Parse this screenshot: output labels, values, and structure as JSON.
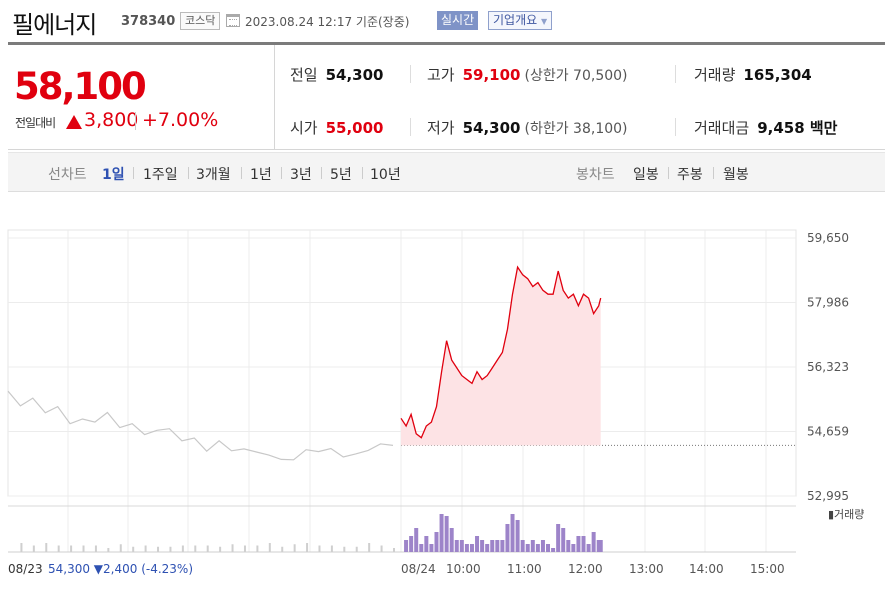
{
  "header": {
    "stock_name": "필에너지",
    "stock_code": "378340",
    "market": "코스닥",
    "datetime": "2023.08.24 12:17 기준(장중)",
    "live_label": "실시간",
    "company_info_label": "기업개요"
  },
  "summary": {
    "price": "58,100",
    "change_label": "전일대비",
    "change_value": "3,800",
    "change_rate": "+7.00%",
    "prev_close_label": "전일",
    "prev_close": "54,300",
    "high_label": "고가",
    "high": "59,100",
    "upper_limit": "(상한가 70,500)",
    "volume_label": "거래량",
    "volume": "165,304",
    "open_label": "시가",
    "open": "55,000",
    "low_label": "저가",
    "low": "54,300",
    "lower_limit": "(하한가 38,100)",
    "amount_label": "거래대금",
    "amount": "9,458 백만"
  },
  "period_bar": {
    "line_chart_label": "선차트",
    "periods": [
      "1일",
      "1주일",
      "3개월",
      "1년",
      "3년",
      "5년",
      "10년"
    ],
    "selected": "1일",
    "candle_chart_label": "봉차트",
    "candles": [
      "일봉",
      "주봉",
      "월봉"
    ]
  },
  "colors": {
    "up": "#e0000f",
    "down": "#2e51b2",
    "area": "#fde3e5",
    "prev_line": "#c8c8c8",
    "volume_today": "#9d84c9",
    "volume_prev": "#cfcfcf"
  },
  "chart_data": {
    "type": "line",
    "title": "",
    "ylim": [
      52995,
      59650
    ],
    "y_ticks": [
      "59,650",
      "57,986",
      "56,323",
      "54,659",
      "52,995"
    ],
    "x_ticks": [
      "08/24",
      "10:00",
      "11:00",
      "12:00",
      "13:00",
      "14:00",
      "15:00"
    ],
    "reference_price": 54300,
    "volume_label": "거래량",
    "prev_day": {
      "label": "08/23",
      "close_text": "54,300",
      "change_text": "2,400",
      "rate_text": "(-4.23%)",
      "values": [
        55700,
        55500,
        55400,
        55200,
        55100,
        55000,
        54900,
        55000,
        55000,
        54850,
        54800,
        54700,
        54650,
        54600,
        54500,
        54400,
        54300,
        54350,
        54200,
        54100,
        54200,
        54000,
        54050,
        53900,
        54100,
        54200,
        54100,
        54050,
        54000,
        54200,
        54300,
        54300
      ]
    },
    "today": {
      "times": [
        "09:00",
        "09:05",
        "09:10",
        "09:15",
        "09:20",
        "09:25",
        "09:30",
        "09:35",
        "09:40",
        "09:45",
        "09:50",
        "09:55",
        "10:00",
        "10:05",
        "10:10",
        "10:15",
        "10:20",
        "10:25",
        "10:30",
        "10:35",
        "10:40",
        "10:45",
        "10:50",
        "10:55",
        "11:00",
        "11:05",
        "11:10",
        "11:15",
        "11:20",
        "11:25",
        "11:30",
        "11:35",
        "11:40",
        "11:45",
        "11:50",
        "11:55",
        "12:00",
        "12:05",
        "12:10",
        "12:15",
        "12:17"
      ],
      "values": [
        55000,
        54800,
        55100,
        54600,
        54500,
        54800,
        54900,
        55300,
        56200,
        57000,
        56500,
        56300,
        56100,
        56000,
        55900,
        56200,
        56000,
        56100,
        56300,
        56500,
        56700,
        57300,
        58200,
        58900,
        58700,
        58600,
        58400,
        58500,
        58300,
        58200,
        58200,
        58800,
        58300,
        58100,
        58200,
        57900,
        58200,
        58100,
        57700,
        57900,
        58100
      ]
    }
  }
}
